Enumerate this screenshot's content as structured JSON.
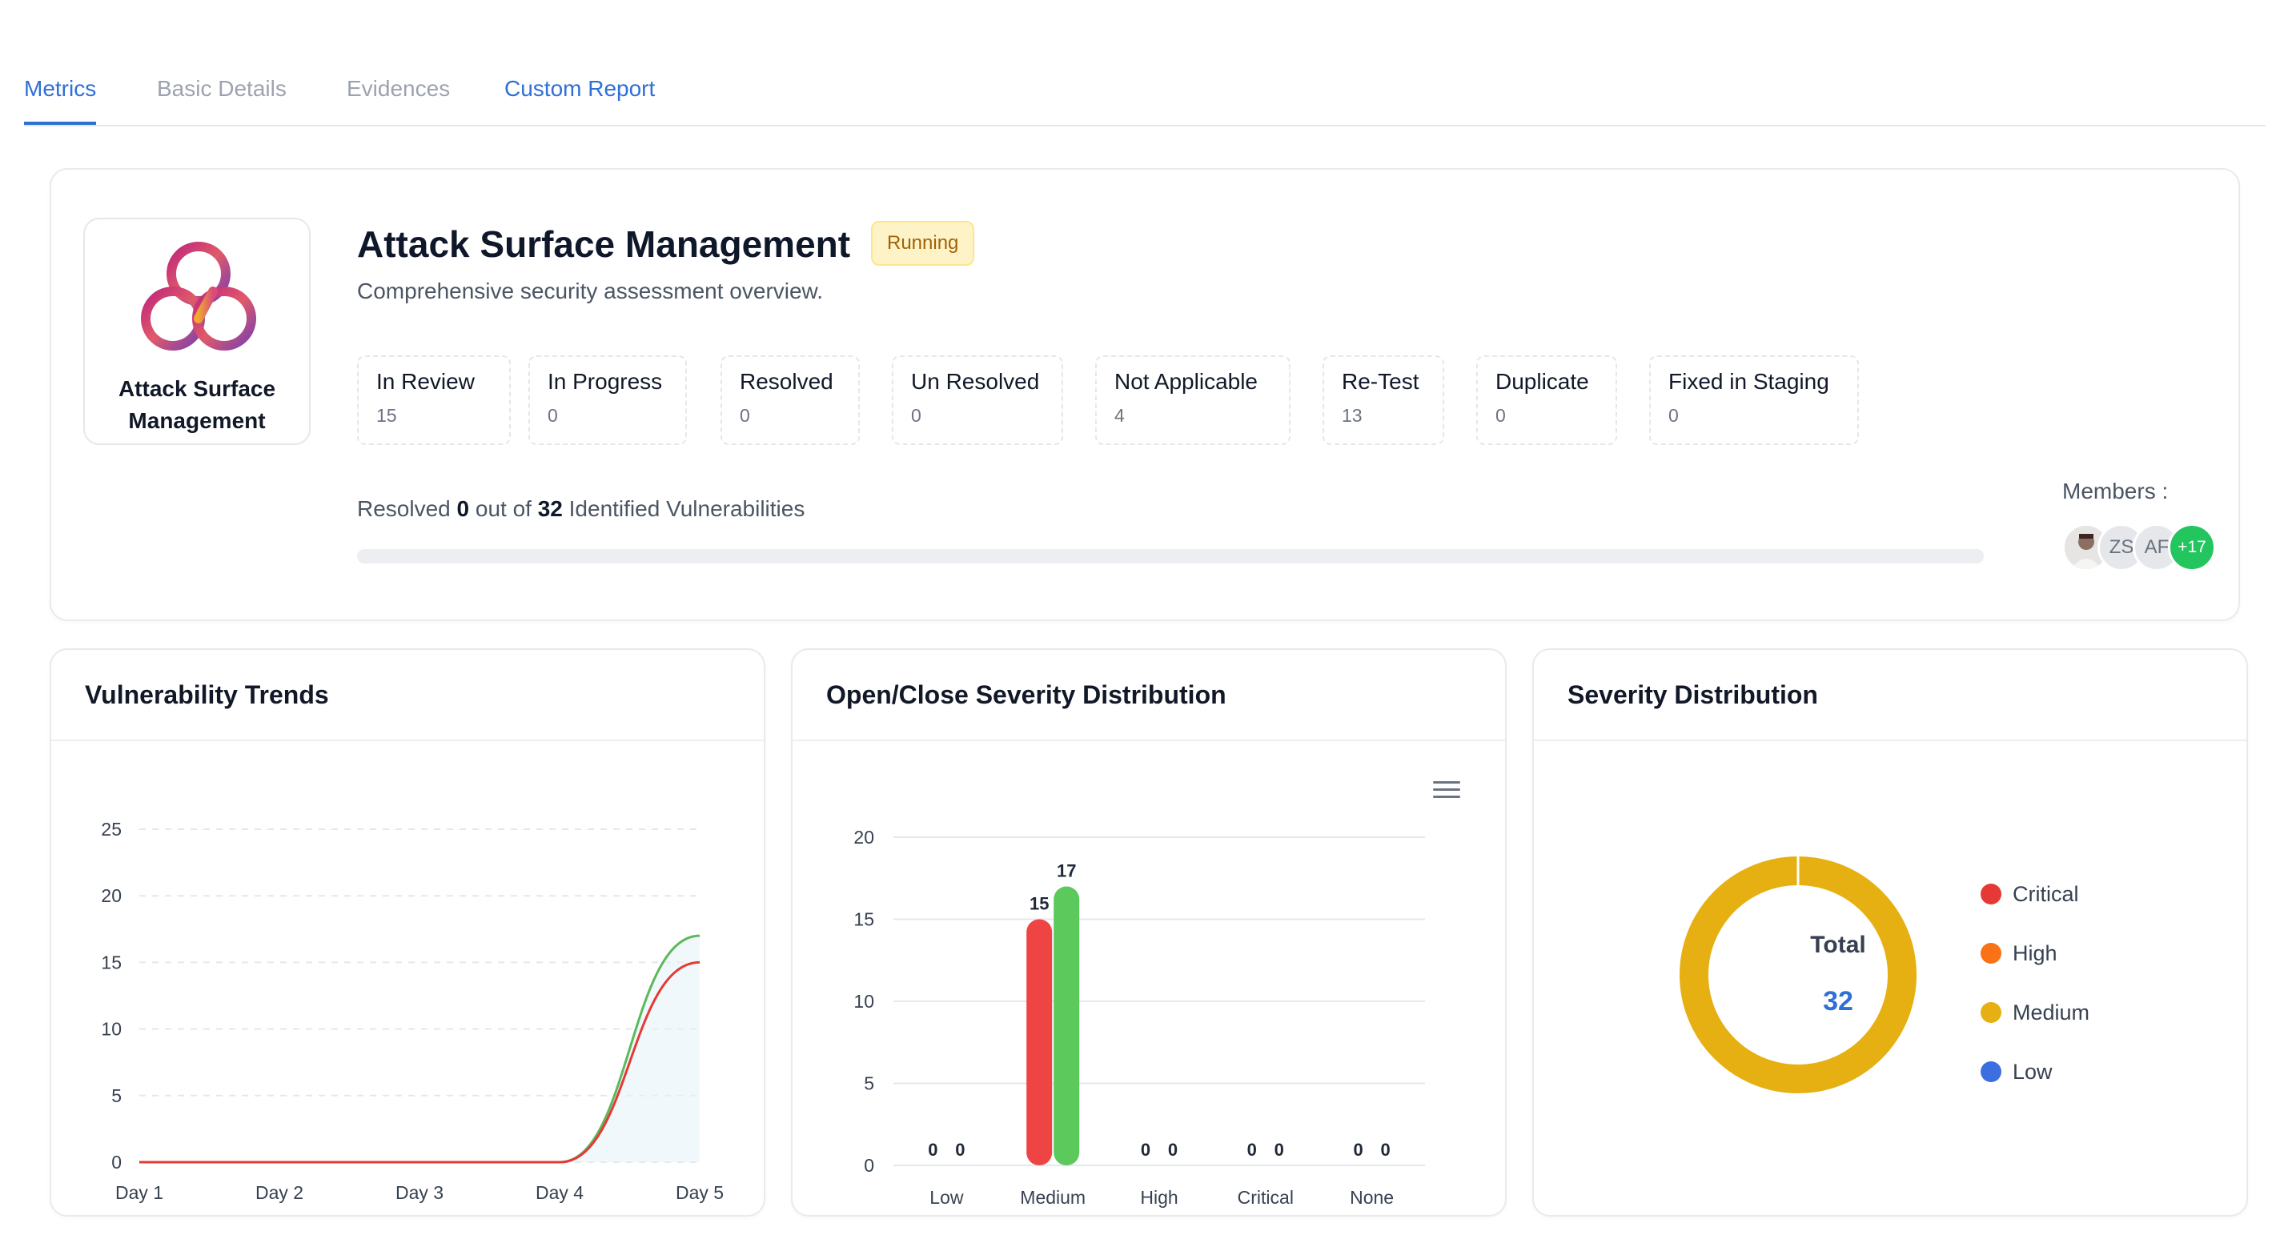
{
  "tabs": [
    {
      "label": "Metrics"
    },
    {
      "label": "Basic Details"
    },
    {
      "label": "Evidences"
    },
    {
      "label": "Custom Report"
    }
  ],
  "summary": {
    "logo_label": "Attack Surface Management",
    "title": "Attack Surface Management",
    "status_badge": "Running",
    "subtitle": "Comprehensive security assessment overview.",
    "stats": [
      {
        "label": "In Review",
        "value": "15"
      },
      {
        "label": "In Progress",
        "value": "0"
      },
      {
        "label": "Resolved",
        "value": "0"
      },
      {
        "label": "Un Resolved",
        "value": "0"
      },
      {
        "label": "Not Applicable",
        "value": "4"
      },
      {
        "label": "Re-Test",
        "value": "13"
      },
      {
        "label": "Duplicate",
        "value": "0"
      },
      {
        "label": "Fixed in Staging",
        "value": "0"
      }
    ],
    "resolved_prefix": "Resolved",
    "resolved_count": "0",
    "resolved_mid": "out of",
    "total_count": "32",
    "resolved_suffix": "Identified Vulnerabilities",
    "progress_fraction": 0,
    "members_label": "Members :",
    "members": {
      "initials_1": "ZS",
      "initials_2": "AF",
      "more_count": "+17"
    }
  },
  "panels": {
    "trends_title": "Vulnerability Trends",
    "open_close_title": "Open/Close Severity Distribution",
    "severity_title": "Severity Distribution"
  },
  "chart_data": [
    {
      "type": "line",
      "x": [
        "Day 1",
        "Day 2",
        "Day 3",
        "Day 4",
        "Day 5"
      ],
      "series": [
        {
          "color": "#5cb85c",
          "values": [
            0,
            0,
            0,
            0,
            17
          ]
        },
        {
          "color": "#e53935",
          "values": [
            0,
            0,
            0,
            0,
            15
          ]
        }
      ],
      "yticks": [
        0,
        5,
        10,
        15,
        20,
        25
      ],
      "ylim": [
        0,
        25
      ],
      "grid": true
    },
    {
      "type": "bar",
      "categories": [
        "Low",
        "Medium",
        "High",
        "Critical",
        "None"
      ],
      "series": [
        {
          "color": "#ef4444",
          "values": [
            0,
            15,
            0,
            0,
            0
          ]
        },
        {
          "color": "#5bc95b",
          "values": [
            0,
            17,
            0,
            0,
            0
          ]
        }
      ],
      "yticks": [
        0,
        5,
        10,
        15,
        20
      ],
      "ylim": [
        0,
        20
      ],
      "grid": true
    },
    {
      "type": "pie",
      "variant": "donut",
      "center_label": "Total",
      "center_value": "32",
      "slices": [
        {
          "name": "Critical",
          "value": 0,
          "color": "#e53935"
        },
        {
          "name": "High",
          "value": 0,
          "color": "#f97316"
        },
        {
          "name": "Medium",
          "value": 32,
          "color": "#e6b012"
        },
        {
          "name": "Low",
          "value": 0,
          "color": "#3b6fe0"
        }
      ],
      "legend_placement": "right"
    }
  ],
  "colors": {
    "accent": "#2f6fd6",
    "badge_bg": "#fef3c7",
    "badge_text": "#a16207"
  },
  "icons": {
    "logo": "trefoil-knot-logo",
    "menu": "hamburger-menu-icon"
  }
}
